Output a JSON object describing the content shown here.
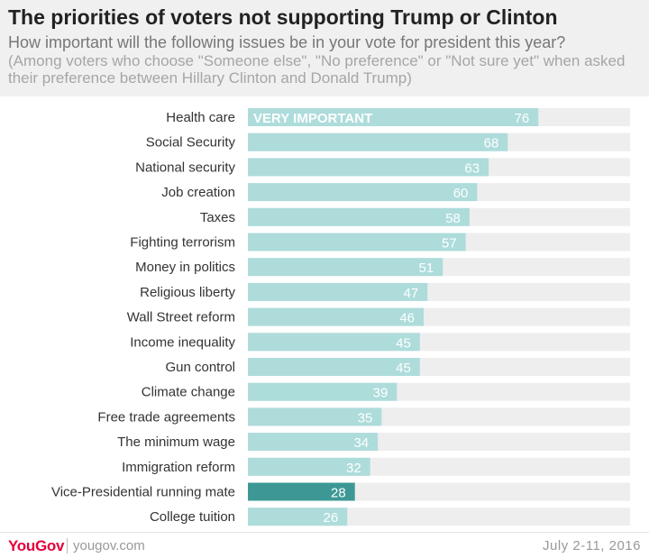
{
  "header": {
    "title": "The priorities of voters not supporting Trump or Clinton",
    "subtitle": "How important will the following issues be in your vote for president this year?",
    "note": "(Among voters who choose \"Someone else\", \"No preference\" or \"Not sure yet\" when asked their preference between Hillary Clinton and Donald Trump)"
  },
  "footer": {
    "logo_you": "You",
    "logo_gov": "Gov",
    "site": "yougov.com",
    "date": "July 2-11, 2016"
  },
  "colors": {
    "bar": "#addcdb",
    "highlight": "#3d9895",
    "track": "#eeeeee",
    "label_text": "#333333",
    "value_text": "#ffffff",
    "logo": "#e4003b"
  },
  "chart_data": {
    "type": "bar",
    "orientation": "horizontal",
    "series_label": "VERY IMPORTANT",
    "categories": [
      "Health care",
      "Social Security",
      "National security",
      "Job creation",
      "Taxes",
      "Fighting terrorism",
      "Money in politics",
      "Religious liberty",
      "Wall Street reform",
      "Income inequality",
      "Gun control",
      "Climate change",
      "Free trade agreements",
      "The minimum wage",
      "Immigration reform",
      "Vice-Presidential running mate",
      "College tuition"
    ],
    "values": [
      76,
      68,
      63,
      60,
      58,
      57,
      51,
      47,
      46,
      45,
      45,
      39,
      35,
      34,
      32,
      28,
      26
    ],
    "highlighted_category": "Vice-Presidential running mate",
    "xlim": [
      0,
      100
    ],
    "grid": false,
    "legend": "none"
  }
}
